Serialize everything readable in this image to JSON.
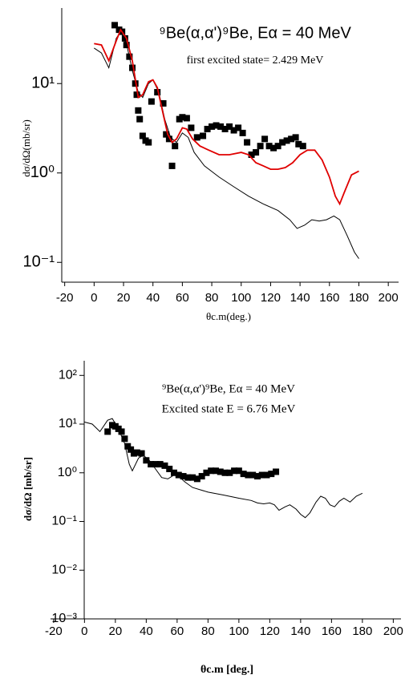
{
  "chart_data": [
    {
      "type": "line",
      "title": "⁹Be(α,α')⁹Be, Eα = 40 MeV",
      "annotation": "first excited state= 2.429 MeV",
      "ylabel": "dσ/dΩ(mb/sr)",
      "xlabel": "θc.m(deg.)",
      "log_y": true,
      "xlim": [
        -22,
        207
      ],
      "xticks": [
        -20,
        0,
        20,
        40,
        60,
        80,
        100,
        120,
        140,
        160,
        180,
        200
      ],
      "ylim": [
        0.06,
        70
      ],
      "yticks": [
        {
          "value": 0.1,
          "label": "10⁻¹"
        },
        {
          "value": 1,
          "label": "10⁰"
        },
        {
          "value": 10,
          "label": "10¹"
        }
      ],
      "series": [
        {
          "mode": "markers",
          "color": "#000000",
          "x": [
            14,
            17,
            19,
            21,
            22,
            24,
            26,
            28,
            29,
            30,
            31,
            33,
            35,
            37,
            39,
            43,
            47,
            49,
            51,
            53,
            55,
            58,
            60,
            63,
            66,
            70,
            74,
            77,
            80,
            83,
            86,
            89,
            92,
            95,
            98,
            101,
            104,
            107,
            110,
            113,
            116,
            119,
            122,
            125,
            128,
            131,
            134,
            137,
            139,
            142
          ],
          "values": [
            45,
            40,
            38,
            32,
            27,
            20,
            15,
            10,
            7.5,
            5,
            4,
            2.6,
            2.3,
            2.2,
            6.3,
            8,
            6,
            2.7,
            2.4,
            1.2,
            2,
            4,
            4.2,
            4.1,
            3.2,
            2.5,
            2.6,
            3.1,
            3.3,
            3.4,
            3.3,
            3.1,
            3.3,
            3.0,
            3.2,
            2.8,
            2.2,
            1.6,
            1.7,
            2.0,
            2.4,
            2.0,
            1.9,
            2.0,
            2.2,
            2.3,
            2.4,
            2.5,
            2.1,
            2.0
          ]
        },
        {
          "mode": "lines",
          "color": "#000000",
          "x": [
            0,
            5,
            10,
            15,
            18,
            22,
            26,
            30,
            33,
            37,
            40,
            44,
            48,
            52,
            56,
            60,
            64,
            68,
            75,
            85,
            95,
            105,
            115,
            125,
            133,
            138,
            143,
            148,
            153,
            158,
            163,
            167,
            172,
            177,
            180
          ],
          "values": [
            25,
            22,
            15,
            32,
            38,
            28,
            14,
            8,
            7,
            10,
            11,
            8,
            4,
            2.5,
            2.2,
            2.8,
            2.5,
            1.7,
            1.2,
            0.9,
            0.7,
            0.55,
            0.45,
            0.38,
            0.3,
            0.24,
            0.26,
            0.3,
            0.29,
            0.3,
            0.33,
            0.3,
            0.2,
            0.13,
            0.11
          ]
        },
        {
          "mode": "lines",
          "color": "#e00000",
          "x": [
            0,
            5,
            10,
            15,
            18,
            22,
            26,
            30,
            33,
            37,
            40,
            43,
            47,
            50,
            53,
            56,
            60,
            63,
            67,
            72,
            78,
            85,
            92,
            100,
            105,
            110,
            115,
            120,
            125,
            130,
            135,
            140,
            145,
            150,
            155,
            160,
            164,
            167,
            170,
            175,
            180
          ],
          "values": [
            28,
            27,
            18,
            30,
            40,
            32,
            18,
            7,
            7.5,
            10.5,
            11,
            9,
            4.5,
            2.7,
            2.2,
            2.4,
            3.2,
            3.1,
            2.4,
            2,
            1.8,
            1.6,
            1.6,
            1.7,
            1.6,
            1.3,
            1.2,
            1.1,
            1.1,
            1.15,
            1.3,
            1.6,
            1.8,
            1.8,
            1.4,
            0.9,
            0.55,
            0.45,
            0.6,
            0.95,
            1.05
          ]
        }
      ]
    },
    {
      "type": "line",
      "title": "⁹Be(α,α')⁹Be, Eα = 40 MeV",
      "annotation": "Excited state E = 6.76 MeV",
      "ylabel": "dσ/dΩ [mb/sr]",
      "xlabel": "θc.m [deg.]",
      "log_y": true,
      "xlim": [
        -22,
        205
      ],
      "xticks": [
        -20,
        0,
        20,
        40,
        60,
        80,
        100,
        120,
        140,
        160,
        180,
        200
      ],
      "ylim": [
        0.001,
        200
      ],
      "yticks": [
        {
          "value": 0.001,
          "label": "10⁻³"
        },
        {
          "value": 0.01,
          "label": "10⁻²"
        },
        {
          "value": 0.1,
          "label": "10⁻¹"
        },
        {
          "value": 1,
          "label": "10⁰"
        },
        {
          "value": 10,
          "label": "10¹"
        },
        {
          "value": 100,
          "label": "10²"
        }
      ],
      "series": [
        {
          "mode": "markers",
          "color": "#000000",
          "x": [
            15,
            18,
            20,
            22,
            24,
            26,
            28,
            30,
            32,
            34,
            37,
            40,
            43,
            46,
            49,
            52,
            55,
            58,
            61,
            64,
            67,
            70,
            73,
            76,
            79,
            82,
            85,
            88,
            91,
            94,
            97,
            100,
            103,
            106,
            109,
            112,
            115,
            118,
            121,
            124
          ],
          "values": [
            7,
            9.5,
            9,
            8,
            7,
            5,
            3.5,
            3,
            2.5,
            2.6,
            2.5,
            1.8,
            1.5,
            1.5,
            1.5,
            1.4,
            1.2,
            1.0,
            0.9,
            0.85,
            0.8,
            0.8,
            0.75,
            0.85,
            1.0,
            1.1,
            1.1,
            1.05,
            1.0,
            1.0,
            1.1,
            1.1,
            0.95,
            0.9,
            0.9,
            0.85,
            0.9,
            0.9,
            0.95,
            1.05
          ]
        },
        {
          "mode": "lines",
          "color": "#000000",
          "x": [
            0,
            5,
            10,
            15,
            18,
            22,
            26,
            29,
            31,
            35,
            38,
            42,
            46,
            50,
            54,
            58,
            61,
            65,
            70,
            80,
            90,
            100,
            108,
            112,
            116,
            120,
            123,
            126,
            130,
            133,
            137,
            140,
            143,
            146,
            150,
            153,
            156,
            159,
            162,
            165,
            168,
            172,
            176,
            180
          ],
          "values": [
            11,
            10,
            7,
            12,
            13,
            8,
            4,
            1.5,
            1.1,
            2,
            2.3,
            1.8,
            1.2,
            0.8,
            0.75,
            0.9,
            0.85,
            0.65,
            0.5,
            0.4,
            0.35,
            0.3,
            0.27,
            0.24,
            0.23,
            0.24,
            0.22,
            0.17,
            0.2,
            0.22,
            0.18,
            0.14,
            0.12,
            0.15,
            0.25,
            0.33,
            0.3,
            0.22,
            0.2,
            0.26,
            0.3,
            0.25,
            0.33,
            0.38
          ]
        }
      ]
    }
  ]
}
